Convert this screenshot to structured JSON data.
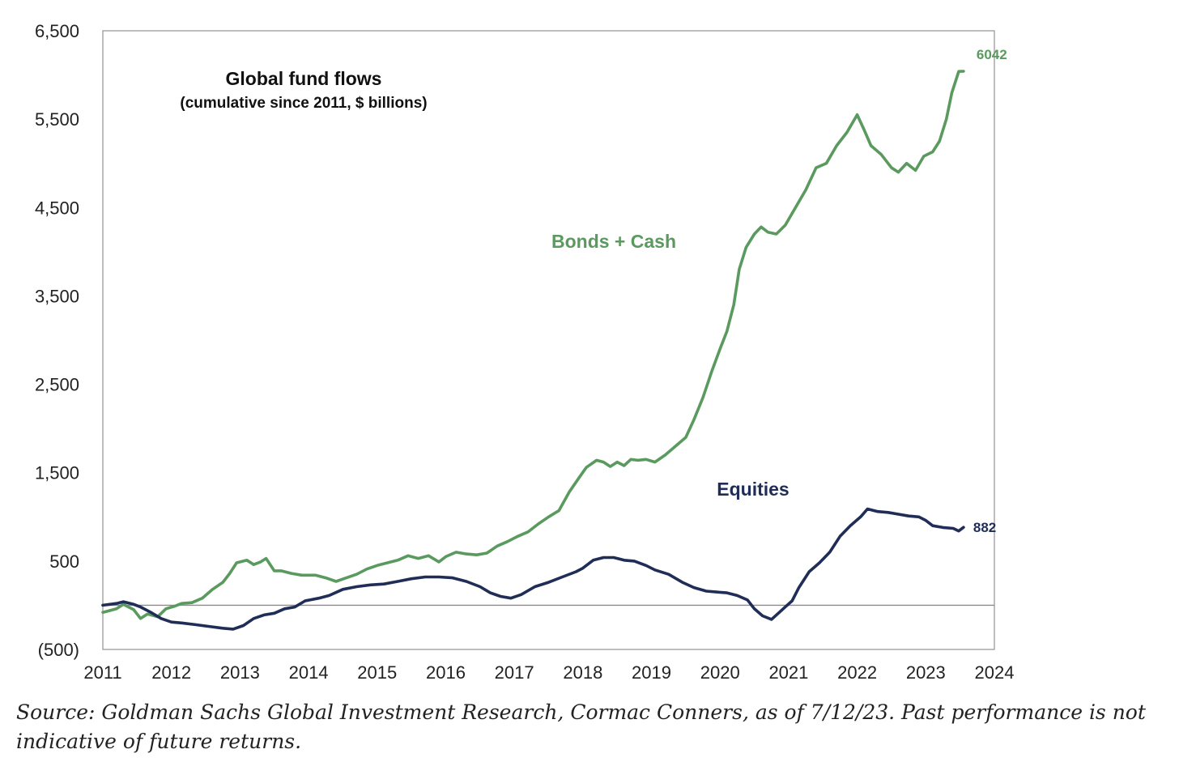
{
  "chart_data": {
    "type": "line",
    "title": "Global fund flows",
    "subtitle": "(cumulative since 2011, $ billions)",
    "xlim": [
      2011,
      2024
    ],
    "ylim": [
      -500,
      6500
    ],
    "x_ticks": [
      2011,
      2012,
      2013,
      2014,
      2015,
      2016,
      2017,
      2018,
      2019,
      2020,
      2021,
      2022,
      2023,
      2024
    ],
    "x_tick_labels": [
      "2011",
      "2012",
      "2013",
      "2014",
      "2015",
      "2016",
      "2017",
      "2018",
      "2019",
      "2020",
      "2021",
      "2022",
      "2023",
      "2024"
    ],
    "y_ticks": [
      -500,
      500,
      1500,
      2500,
      3500,
      4500,
      5500,
      6500
    ],
    "y_tick_labels": [
      "(500)",
      "500",
      "1,500",
      "2,500",
      "3,500",
      "4,500",
      "5,500",
      "6,500"
    ],
    "zero_line": 0,
    "grid": false,
    "series": [
      {
        "name": "Bonds + Cash",
        "color": "#5a9a5e",
        "end_label": "6042",
        "points": [
          [
            2011.0,
            -80
          ],
          [
            2011.1,
            -60
          ],
          [
            2011.2,
            -40
          ],
          [
            2011.3,
            10
          ],
          [
            2011.45,
            -50
          ],
          [
            2011.55,
            -150
          ],
          [
            2011.65,
            -100
          ],
          [
            2011.8,
            -130
          ],
          [
            2011.92,
            -40
          ],
          [
            2012.05,
            -10
          ],
          [
            2012.15,
            20
          ],
          [
            2012.3,
            30
          ],
          [
            2012.45,
            80
          ],
          [
            2012.6,
            180
          ],
          [
            2012.75,
            260
          ],
          [
            2012.85,
            360
          ],
          [
            2012.95,
            480
          ],
          [
            2013.1,
            510
          ],
          [
            2013.2,
            460
          ],
          [
            2013.3,
            490
          ],
          [
            2013.38,
            530
          ],
          [
            2013.5,
            390
          ],
          [
            2013.6,
            390
          ],
          [
            2013.75,
            360
          ],
          [
            2013.9,
            340
          ],
          [
            2014.1,
            340
          ],
          [
            2014.25,
            310
          ],
          [
            2014.4,
            270
          ],
          [
            2014.55,
            310
          ],
          [
            2014.7,
            350
          ],
          [
            2014.85,
            410
          ],
          [
            2015.0,
            450
          ],
          [
            2015.15,
            480
          ],
          [
            2015.3,
            510
          ],
          [
            2015.45,
            560
          ],
          [
            2015.6,
            530
          ],
          [
            2015.75,
            560
          ],
          [
            2015.9,
            490
          ],
          [
            2016.0,
            550
          ],
          [
            2016.15,
            600
          ],
          [
            2016.3,
            580
          ],
          [
            2016.45,
            570
          ],
          [
            2016.6,
            590
          ],
          [
            2016.75,
            670
          ],
          [
            2016.9,
            720
          ],
          [
            2017.05,
            780
          ],
          [
            2017.2,
            830
          ],
          [
            2017.35,
            920
          ],
          [
            2017.5,
            1000
          ],
          [
            2017.65,
            1070
          ],
          [
            2017.8,
            1280
          ],
          [
            2017.95,
            1450
          ],
          [
            2018.05,
            1560
          ],
          [
            2018.2,
            1640
          ],
          [
            2018.3,
            1620
          ],
          [
            2018.4,
            1570
          ],
          [
            2018.5,
            1620
          ],
          [
            2018.6,
            1580
          ],
          [
            2018.7,
            1650
          ],
          [
            2018.8,
            1640
          ],
          [
            2018.92,
            1650
          ],
          [
            2019.05,
            1620
          ],
          [
            2019.2,
            1700
          ],
          [
            2019.35,
            1800
          ],
          [
            2019.5,
            1900
          ],
          [
            2019.62,
            2100
          ],
          [
            2019.75,
            2350
          ],
          [
            2019.88,
            2650
          ],
          [
            2020.0,
            2900
          ],
          [
            2020.1,
            3100
          ],
          [
            2020.2,
            3400
          ],
          [
            2020.28,
            3800
          ],
          [
            2020.38,
            4050
          ],
          [
            2020.5,
            4200
          ],
          [
            2020.6,
            4280
          ],
          [
            2020.7,
            4220
          ],
          [
            2020.82,
            4200
          ],
          [
            2020.95,
            4300
          ],
          [
            2021.1,
            4500
          ],
          [
            2021.25,
            4700
          ],
          [
            2021.4,
            4950
          ],
          [
            2021.55,
            5000
          ],
          [
            2021.7,
            5200
          ],
          [
            2021.85,
            5350
          ],
          [
            2022.0,
            5550
          ],
          [
            2022.1,
            5380
          ],
          [
            2022.2,
            5200
          ],
          [
            2022.35,
            5100
          ],
          [
            2022.5,
            4950
          ],
          [
            2022.6,
            4900
          ],
          [
            2022.72,
            5000
          ],
          [
            2022.85,
            4920
          ],
          [
            2022.97,
            5080
          ],
          [
            2023.1,
            5130
          ],
          [
            2023.2,
            5250
          ],
          [
            2023.3,
            5500
          ],
          [
            2023.38,
            5800
          ],
          [
            2023.48,
            6040
          ],
          [
            2023.55,
            6042
          ]
        ]
      },
      {
        "name": "Equities",
        "color": "#1f2d57",
        "end_label": "882",
        "points": [
          [
            2011.0,
            0
          ],
          [
            2011.1,
            10
          ],
          [
            2011.2,
            20
          ],
          [
            2011.3,
            40
          ],
          [
            2011.45,
            10
          ],
          [
            2011.55,
            -20
          ],
          [
            2011.7,
            -80
          ],
          [
            2011.85,
            -150
          ],
          [
            2012.0,
            -190
          ],
          [
            2012.15,
            -200
          ],
          [
            2012.35,
            -220
          ],
          [
            2012.55,
            -240
          ],
          [
            2012.75,
            -260
          ],
          [
            2012.9,
            -270
          ],
          [
            2013.05,
            -230
          ],
          [
            2013.2,
            -150
          ],
          [
            2013.35,
            -110
          ],
          [
            2013.5,
            -90
          ],
          [
            2013.65,
            -40
          ],
          [
            2013.8,
            -20
          ],
          [
            2013.95,
            50
          ],
          [
            2014.15,
            80
          ],
          [
            2014.3,
            110
          ],
          [
            2014.5,
            180
          ],
          [
            2014.7,
            210
          ],
          [
            2014.9,
            230
          ],
          [
            2015.1,
            240
          ],
          [
            2015.3,
            270
          ],
          [
            2015.5,
            300
          ],
          [
            2015.7,
            320
          ],
          [
            2015.9,
            320
          ],
          [
            2016.1,
            310
          ],
          [
            2016.3,
            270
          ],
          [
            2016.5,
            210
          ],
          [
            2016.65,
            140
          ],
          [
            2016.8,
            100
          ],
          [
            2016.95,
            80
          ],
          [
            2017.1,
            120
          ],
          [
            2017.3,
            210
          ],
          [
            2017.5,
            260
          ],
          [
            2017.7,
            320
          ],
          [
            2017.9,
            380
          ],
          [
            2018.0,
            420
          ],
          [
            2018.15,
            510
          ],
          [
            2018.3,
            540
          ],
          [
            2018.45,
            540
          ],
          [
            2018.6,
            510
          ],
          [
            2018.75,
            500
          ],
          [
            2018.92,
            450
          ],
          [
            2019.05,
            400
          ],
          [
            2019.25,
            350
          ],
          [
            2019.45,
            260
          ],
          [
            2019.62,
            200
          ],
          [
            2019.8,
            160
          ],
          [
            2019.95,
            150
          ],
          [
            2020.1,
            140
          ],
          [
            2020.25,
            110
          ],
          [
            2020.4,
            60
          ],
          [
            2020.5,
            -40
          ],
          [
            2020.62,
            -120
          ],
          [
            2020.75,
            -160
          ],
          [
            2020.85,
            -90
          ],
          [
            2020.95,
            -20
          ],
          [
            2021.05,
            50
          ],
          [
            2021.15,
            200
          ],
          [
            2021.3,
            380
          ],
          [
            2021.45,
            480
          ],
          [
            2021.6,
            600
          ],
          [
            2021.75,
            780
          ],
          [
            2021.9,
            900
          ],
          [
            2022.05,
            1000
          ],
          [
            2022.15,
            1090
          ],
          [
            2022.3,
            1060
          ],
          [
            2022.45,
            1050
          ],
          [
            2022.6,
            1030
          ],
          [
            2022.75,
            1010
          ],
          [
            2022.9,
            1000
          ],
          [
            2023.0,
            960
          ],
          [
            2023.1,
            900
          ],
          [
            2023.25,
            880
          ],
          [
            2023.4,
            870
          ],
          [
            2023.48,
            840
          ],
          [
            2023.55,
            882
          ]
        ]
      }
    ],
    "annotations": [
      "Bonds + Cash",
      "Equities"
    ]
  },
  "source_note": "Source: Goldman Sachs Global Investment Research, Cormac Conners, as of 7/12/23. Past performance is not indicative of future returns."
}
